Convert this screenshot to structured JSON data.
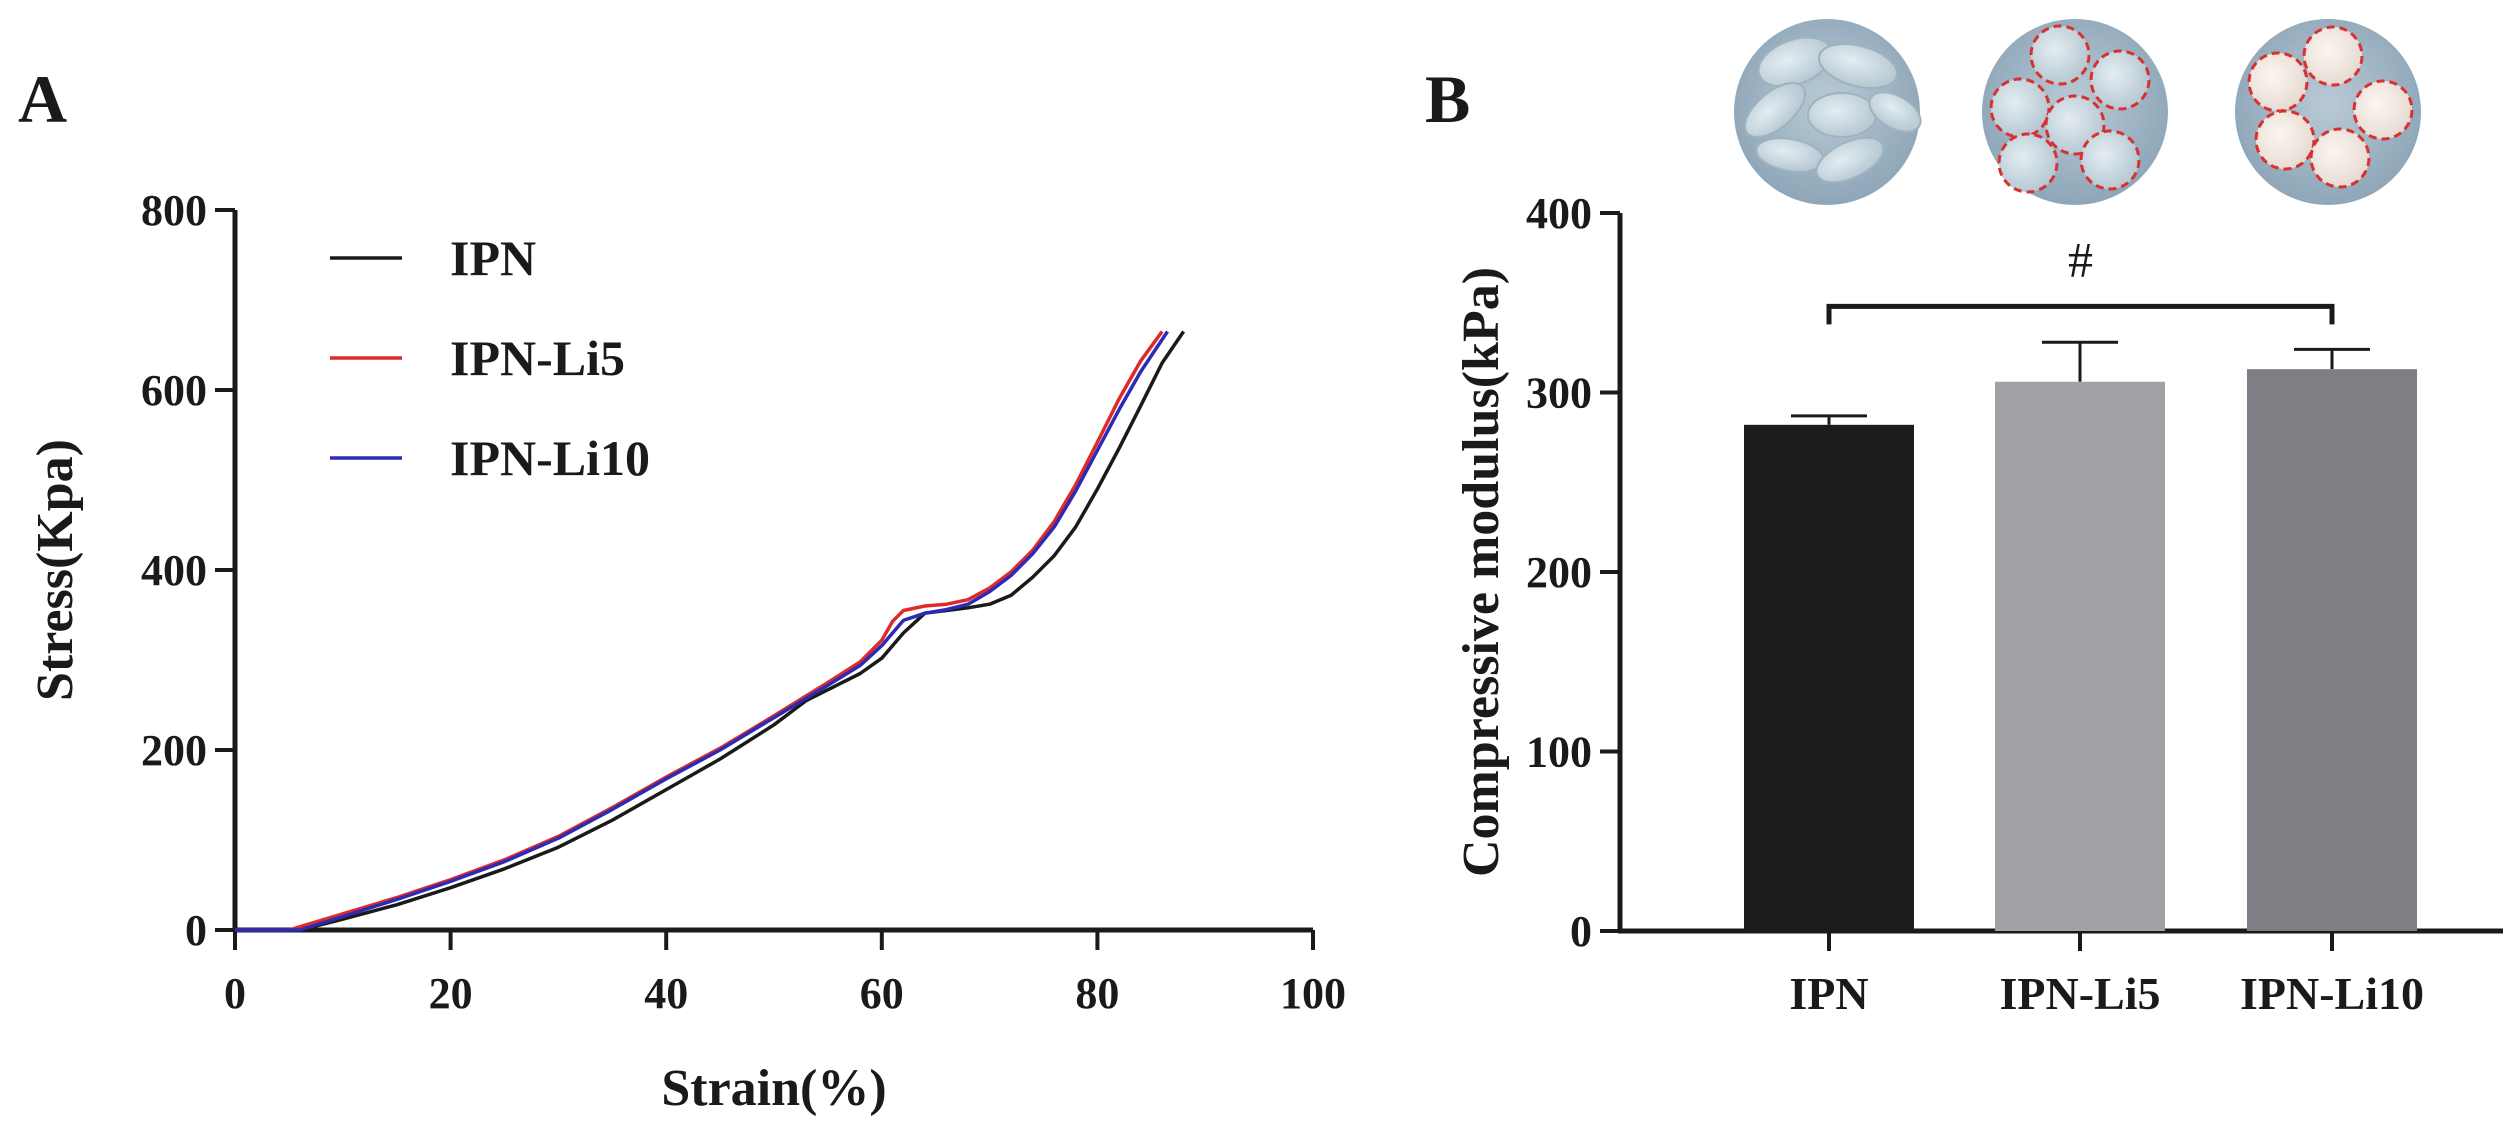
{
  "chart_data": [
    {
      "panel": "A",
      "type": "line",
      "xlabel": "Strain(%)",
      "ylabel": "Stress(Kpa)",
      "xlim": [
        0,
        100
      ],
      "ylim": [
        0,
        800
      ],
      "xticks": [
        0,
        20,
        40,
        60,
        80,
        100
      ],
      "yticks": [
        0,
        200,
        400,
        600,
        800
      ],
      "grid": false,
      "legend_position": "top-left",
      "series": [
        {
          "name": "IPN",
          "color": "#1a1a1a",
          "x": [
            0,
            6,
            10,
            15,
            20,
            25,
            30,
            35,
            40,
            45,
            50,
            53,
            56,
            58,
            60,
            62,
            64,
            66,
            68,
            70,
            72,
            74,
            76,
            78,
            80,
            82,
            84,
            86,
            88
          ],
          "y": [
            0,
            0,
            12,
            28,
            47,
            68,
            92,
            122,
            156,
            190,
            228,
            255,
            273,
            285,
            302,
            330,
            352,
            355,
            358,
            362,
            372,
            392,
            416,
            448,
            490,
            535,
            582,
            630,
            665
          ]
        },
        {
          "name": "IPN-Li5",
          "color": "#e02a2a",
          "x": [
            0,
            5,
            10,
            15,
            20,
            25,
            30,
            35,
            40,
            45,
            50,
            55,
            58,
            60,
            61,
            62,
            64,
            66,
            68,
            70,
            72,
            74,
            76,
            78,
            80,
            82,
            84,
            86
          ],
          "y": [
            0,
            0,
            18,
            36,
            56,
            78,
            104,
            136,
            170,
            202,
            238,
            275,
            298,
            322,
            343,
            355,
            360,
            362,
            367,
            380,
            398,
            422,
            454,
            495,
            542,
            590,
            632,
            665
          ]
        },
        {
          "name": "IPN-Li10",
          "color": "#2b2bb5",
          "x": [
            0,
            6,
            10,
            15,
            20,
            25,
            30,
            35,
            40,
            45,
            50,
            55,
            58,
            60,
            62,
            64,
            66,
            68,
            70,
            72,
            74,
            76,
            78,
            80,
            82,
            84,
            86.5
          ],
          "y": [
            0,
            0,
            15,
            34,
            54,
            76,
            102,
            134,
            168,
            200,
            236,
            272,
            294,
            316,
            344,
            352,
            356,
            362,
            376,
            394,
            418,
            448,
            488,
            533,
            578,
            620,
            665
          ]
        }
      ]
    },
    {
      "panel": "B",
      "type": "bar",
      "ylabel": "Compressive modulus(kPa)",
      "ylim": [
        0,
        400
      ],
      "yticks": [
        0,
        100,
        200,
        300,
        400
      ],
      "categories": [
        "IPN",
        "IPN-Li5",
        "IPN-Li10"
      ],
      "values": [
        282,
        306,
        313
      ],
      "errors": [
        5,
        22,
        11
      ],
      "colors": [
        "#1d1b1c",
        "#a2a1a8",
        "#7e7e84"
      ],
      "significance": {
        "label": "#",
        "between": [
          "IPN",
          "IPN-Li10"
        ]
      },
      "photos": [
        "hydrogel-photo-ipn",
        "hydrogel-photo-ipn-li5",
        "hydrogel-photo-ipn-li10"
      ]
    }
  ]
}
